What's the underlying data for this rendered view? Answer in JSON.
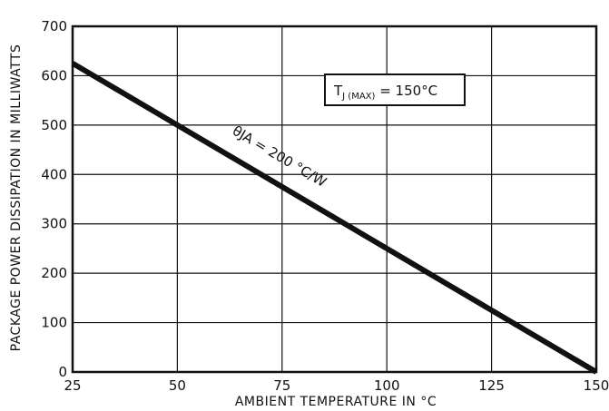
{
  "chart_data": {
    "type": "line",
    "title": "",
    "xlabel": "AMBIENT TEMPERATURE IN °C",
    "ylabel": "PACKAGE POWER DISSIPATION IN MILLIWATTS",
    "xlim": [
      25,
      150
    ],
    "ylim": [
      0,
      700
    ],
    "x_ticks": [
      25,
      50,
      75,
      100,
      125,
      150
    ],
    "y_ticks": [
      0,
      100,
      200,
      300,
      400,
      500,
      600,
      700
    ],
    "grid": true,
    "series": [
      {
        "x": [
          25,
          150
        ],
        "y": [
          625,
          0
        ],
        "label": "θJA = 200 °C/W"
      }
    ],
    "annotations": [
      {
        "main": "T",
        "sub": "J (MAX)",
        "rest": " = 150°C"
      }
    ]
  }
}
